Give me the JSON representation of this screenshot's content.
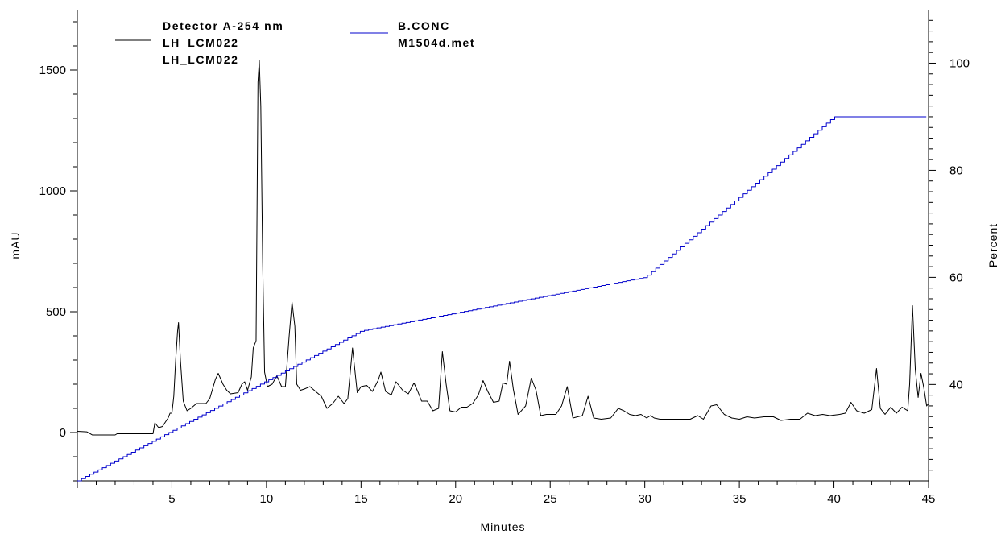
{
  "chart_data": {
    "type": "line",
    "xlabel": "Minutes",
    "ylabel_left": "mAU",
    "ylabel_right": "Percent",
    "xlim": [
      0,
      45
    ],
    "ylim_left": [
      -200,
      1750
    ],
    "ylim_right": [
      22,
      110
    ],
    "xticks": [
      5,
      10,
      15,
      20,
      25,
      30,
      35,
      40,
      45
    ],
    "yticks_left": [
      0,
      500,
      1000,
      1500
    ],
    "yticks_right": [
      40,
      60,
      80,
      100
    ],
    "legend": {
      "left": {
        "lines": [
          "Detector A-254 nm",
          "LH_LCM022",
          "LH_LCM022"
        ],
        "color": "#000000"
      },
      "right": {
        "lines": [
          "B.CONC",
          "M1504d.met"
        ],
        "color": "#0000cc"
      }
    },
    "series": [
      {
        "axis": "left",
        "color": "#000000",
        "points": [
          [
            0,
            5
          ],
          [
            0.5,
            3
          ],
          [
            0.8,
            -10
          ],
          [
            2.0,
            -10
          ],
          [
            2.1,
            -5
          ],
          [
            3.5,
            -5
          ],
          [
            4.0,
            -5
          ],
          [
            4.1,
            40
          ],
          [
            4.2,
            30
          ],
          [
            4.3,
            20
          ],
          [
            4.5,
            25
          ],
          [
            4.8,
            60
          ],
          [
            4.9,
            80
          ],
          [
            5.0,
            80
          ],
          [
            5.1,
            150
          ],
          [
            5.2,
            300
          ],
          [
            5.3,
            420
          ],
          [
            5.35,
            455
          ],
          [
            5.45,
            300
          ],
          [
            5.6,
            130
          ],
          [
            5.8,
            90
          ],
          [
            6.0,
            100
          ],
          [
            6.3,
            120
          ],
          [
            6.8,
            120
          ],
          [
            7.0,
            140
          ],
          [
            7.3,
            220
          ],
          [
            7.45,
            245
          ],
          [
            7.7,
            200
          ],
          [
            7.9,
            175
          ],
          [
            8.1,
            160
          ],
          [
            8.5,
            165
          ],
          [
            8.7,
            200
          ],
          [
            8.85,
            210
          ],
          [
            9.0,
            175
          ],
          [
            9.2,
            230
          ],
          [
            9.3,
            350
          ],
          [
            9.45,
            380
          ],
          [
            9.55,
            1450
          ],
          [
            9.62,
            1540
          ],
          [
            9.7,
            1350
          ],
          [
            9.8,
            700
          ],
          [
            9.9,
            250
          ],
          [
            10.05,
            190
          ],
          [
            10.3,
            200
          ],
          [
            10.55,
            235
          ],
          [
            10.8,
            190
          ],
          [
            11.0,
            190
          ],
          [
            11.2,
            400
          ],
          [
            11.35,
            540
          ],
          [
            11.5,
            440
          ],
          [
            11.6,
            200
          ],
          [
            11.8,
            175
          ],
          [
            12.0,
            180
          ],
          [
            12.3,
            190
          ],
          [
            12.6,
            170
          ],
          [
            12.9,
            150
          ],
          [
            13.2,
            100
          ],
          [
            13.5,
            120
          ],
          [
            13.8,
            150
          ],
          [
            14.1,
            120
          ],
          [
            14.3,
            140
          ],
          [
            14.55,
            350
          ],
          [
            14.8,
            165
          ],
          [
            15.0,
            190
          ],
          [
            15.3,
            195
          ],
          [
            15.6,
            170
          ],
          [
            15.9,
            215
          ],
          [
            16.05,
            250
          ],
          [
            16.3,
            170
          ],
          [
            16.6,
            155
          ],
          [
            16.85,
            210
          ],
          [
            17.2,
            175
          ],
          [
            17.5,
            160
          ],
          [
            17.8,
            205
          ],
          [
            18.0,
            170
          ],
          [
            18.2,
            130
          ],
          [
            18.5,
            130
          ],
          [
            18.8,
            90
          ],
          [
            19.1,
            100
          ],
          [
            19.3,
            335
          ],
          [
            19.5,
            200
          ],
          [
            19.7,
            90
          ],
          [
            20.0,
            85
          ],
          [
            20.3,
            105
          ],
          [
            20.6,
            105
          ],
          [
            20.9,
            120
          ],
          [
            21.2,
            155
          ],
          [
            21.45,
            215
          ],
          [
            21.7,
            170
          ],
          [
            22.0,
            125
          ],
          [
            22.3,
            130
          ],
          [
            22.5,
            205
          ],
          [
            22.7,
            200
          ],
          [
            22.85,
            295
          ],
          [
            23.05,
            180
          ],
          [
            23.3,
            75
          ],
          [
            23.7,
            110
          ],
          [
            24.0,
            225
          ],
          [
            24.25,
            175
          ],
          [
            24.5,
            70
          ],
          [
            24.8,
            75
          ],
          [
            25.3,
            75
          ],
          [
            25.6,
            110
          ],
          [
            25.9,
            190
          ],
          [
            26.2,
            60
          ],
          [
            26.7,
            70
          ],
          [
            27.0,
            150
          ],
          [
            27.3,
            60
          ],
          [
            27.7,
            55
          ],
          [
            28.2,
            60
          ],
          [
            28.6,
            100
          ],
          [
            28.9,
            90
          ],
          [
            29.2,
            75
          ],
          [
            29.5,
            70
          ],
          [
            29.8,
            75
          ],
          [
            30.1,
            60
          ],
          [
            30.3,
            70
          ],
          [
            30.5,
            60
          ],
          [
            30.8,
            55
          ],
          [
            31.5,
            55
          ],
          [
            32.0,
            55
          ],
          [
            32.4,
            55
          ],
          [
            32.8,
            70
          ],
          [
            33.1,
            55
          ],
          [
            33.5,
            110
          ],
          [
            33.8,
            115
          ],
          [
            34.2,
            75
          ],
          [
            34.6,
            60
          ],
          [
            35.0,
            55
          ],
          [
            35.4,
            65
          ],
          [
            35.8,
            60
          ],
          [
            36.3,
            65
          ],
          [
            36.8,
            65
          ],
          [
            37.2,
            50
          ],
          [
            37.7,
            55
          ],
          [
            38.2,
            55
          ],
          [
            38.6,
            80
          ],
          [
            39.0,
            70
          ],
          [
            39.4,
            75
          ],
          [
            39.8,
            70
          ],
          [
            40.3,
            75
          ],
          [
            40.6,
            80
          ],
          [
            40.9,
            125
          ],
          [
            41.2,
            90
          ],
          [
            41.6,
            80
          ],
          [
            42.0,
            95
          ],
          [
            42.25,
            265
          ],
          [
            42.45,
            100
          ],
          [
            42.7,
            75
          ],
          [
            43.0,
            105
          ],
          [
            43.3,
            80
          ],
          [
            43.6,
            105
          ],
          [
            43.9,
            90
          ],
          [
            44.0,
            200
          ],
          [
            44.15,
            525
          ],
          [
            44.3,
            260
          ],
          [
            44.45,
            145
          ],
          [
            44.6,
            245
          ],
          [
            44.75,
            185
          ],
          [
            44.9,
            110
          ],
          [
            45.0,
            120
          ]
        ]
      },
      {
        "axis": "right",
        "color": "#0000cc",
        "points": [
          [
            0,
            22
          ],
          [
            15,
            50
          ],
          [
            30,
            60
          ],
          [
            40,
            90
          ],
          [
            45,
            90
          ]
        ],
        "step": 0.22
      }
    ]
  }
}
